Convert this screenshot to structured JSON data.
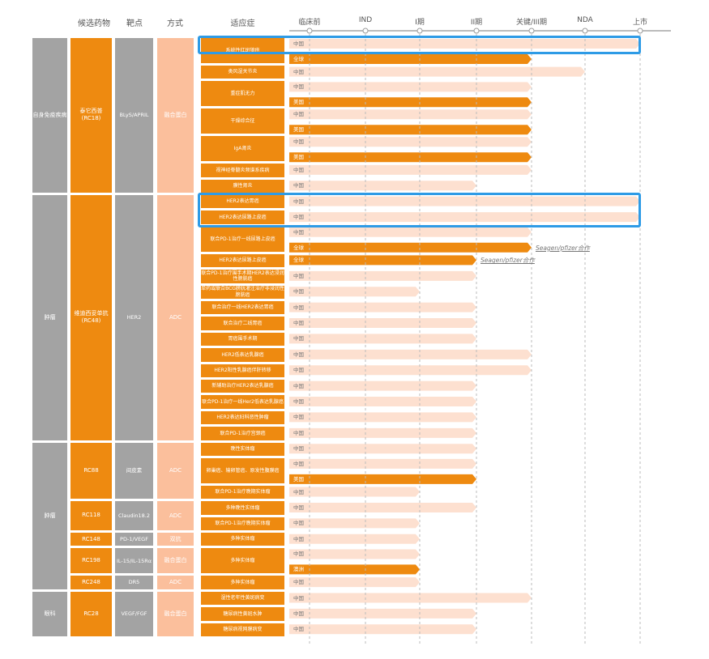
{
  "headers": {
    "drug": "候选药物",
    "target": "靶点",
    "modality": "方式",
    "indication": "适应症"
  },
  "colors": {
    "dark_bar": "#ee8a10",
    "light_bar": "#fde0d0",
    "grey": "#a3a3a3",
    "modality": "#fbbf9c",
    "highlight": "#2e9be6"
  },
  "chart_data": {
    "type": "pipeline",
    "stages": [
      "临床前",
      "IND",
      "I期",
      "II期",
      "关键/III期",
      "NDA",
      "上市"
    ],
    "groups": [
      {
        "category": "自身免疫疾病",
        "drug": "泰它西普\n(RC18)",
        "target": "BLyS/APRIL",
        "modality": "融合蛋白",
        "indications": [
          {
            "name": "系统性红斑狼疮",
            "bars": [
              {
                "region": "中国",
                "stage": 6,
                "style": "light"
              },
              {
                "region": "全球",
                "stage": 4,
                "style": "dark"
              }
            ],
            "highlight": true
          },
          {
            "name": "类风湿关节炎",
            "bars": [
              {
                "region": "中国",
                "stage": 5,
                "style": "light"
              }
            ]
          },
          {
            "name": "重症肌无力",
            "bars": [
              {
                "region": "中国",
                "stage": 4,
                "style": "light"
              },
              {
                "region": "美国",
                "stage": 4,
                "style": "dark"
              }
            ]
          },
          {
            "name": "干燥综合征",
            "bars": [
              {
                "region": "中国",
                "stage": 4,
                "style": "light"
              },
              {
                "region": "美国",
                "stage": 4,
                "style": "dark"
              }
            ]
          },
          {
            "name": "IgA肾炎",
            "bars": [
              {
                "region": "中国",
                "stage": 4,
                "style": "light"
              },
              {
                "region": "美国",
                "stage": 4,
                "style": "dark"
              }
            ]
          },
          {
            "name": "视神经脊髓炎频谱系疾病",
            "bars": [
              {
                "region": "中国",
                "stage": 4,
                "style": "light"
              }
            ]
          },
          {
            "name": "膜性肾炎",
            "bars": [
              {
                "region": "中国",
                "stage": 3,
                "style": "light"
              }
            ]
          }
        ]
      },
      {
        "category": "肿瘤",
        "drug": "维迪西妥单抗\n(RC48)",
        "target": "HER2",
        "modality": "ADC",
        "indications": [
          {
            "name": "HER2表达胃癌",
            "bars": [
              {
                "region": "中国",
                "stage": 6,
                "style": "light"
              }
            ],
            "highlight": true
          },
          {
            "name": "HER2表达尿路上皮癌",
            "bars": [
              {
                "region": "中国",
                "stage": 6,
                "style": "light"
              }
            ],
            "highlight": true
          },
          {
            "name": "联合PD-1治疗一线尿路上皮癌",
            "bars": [
              {
                "region": "中国",
                "stage": 4,
                "style": "light"
              },
              {
                "region": "全球",
                "stage": 4,
                "style": "dark",
                "note": "Seagen/pfizer合作"
              }
            ]
          },
          {
            "name": "HER2表达尿路上皮癌",
            "bars": [
              {
                "region": "全球",
                "stage": 3,
                "style": "dark",
                "note": "Seagen/pfizer合作"
              }
            ]
          },
          {
            "name": "联合PD-1治疗围手术期HER2表达浸润性膀胱癌",
            "bars": [
              {
                "region": "中国",
                "stage": 3,
                "style": "light"
              }
            ]
          },
          {
            "name": "单药或联合BCG膀胱灌注治疗非浸润性膀胱癌",
            "bars": [
              {
                "region": "中国",
                "stage": 2,
                "style": "light"
              }
            ]
          },
          {
            "name": "联合治疗一线HER2表达胃癌",
            "bars": [
              {
                "region": "中国",
                "stage": 3,
                "style": "light"
              }
            ]
          },
          {
            "name": "联合治疗二线胃癌",
            "bars": [
              {
                "region": "中国",
                "stage": 3,
                "style": "light"
              }
            ]
          },
          {
            "name": "胃癌围手术期",
            "bars": [
              {
                "region": "中国",
                "stage": 3,
                "style": "light"
              }
            ]
          },
          {
            "name": "HER2低表达乳腺癌",
            "bars": [
              {
                "region": "中国",
                "stage": 4,
                "style": "light"
              }
            ]
          },
          {
            "name": "HER2阳性乳腺癌伴肝转移",
            "bars": [
              {
                "region": "中国",
                "stage": 4,
                "style": "light"
              }
            ]
          },
          {
            "name": "新辅助治疗HER2表达乳腺癌",
            "bars": [
              {
                "region": "中国",
                "stage": 3,
                "style": "light"
              }
            ]
          },
          {
            "name": "联合PD-1治疗一线Her2低表达乳腺癌",
            "bars": [
              {
                "region": "中国",
                "stage": 3,
                "style": "light"
              }
            ]
          },
          {
            "name": "HER2表达妇科恶性肿瘤",
            "bars": [
              {
                "region": "中国",
                "stage": 3,
                "style": "light"
              }
            ]
          },
          {
            "name": "联合PD-1治疗宫颈癌",
            "bars": [
              {
                "region": "中国",
                "stage": 3,
                "style": "light"
              }
            ]
          }
        ]
      },
      {
        "category": "肿瘤",
        "drug": "RC88",
        "target": "间皮素",
        "modality": "ADC",
        "indications": [
          {
            "name": "晚性实体瘤",
            "bars": [
              {
                "region": "中国",
                "stage": 3,
                "style": "light"
              }
            ]
          },
          {
            "name": "卵巢癌、输卵管癌、原发性腹膜癌",
            "bars": [
              {
                "region": "中国",
                "stage": 3,
                "style": "light"
              },
              {
                "region": "美国",
                "stage": 3,
                "style": "dark"
              }
            ]
          },
          {
            "name": "联合PD-1治疗晚期实体瘤",
            "bars": [
              {
                "region": "中国",
                "stage": 2,
                "style": "light"
              }
            ]
          }
        ]
      },
      {
        "category": "肿瘤",
        "drug": "RC118",
        "target": "Claudin18.2",
        "modality": "ADC",
        "indications": [
          {
            "name": "多种晚性实体瘤",
            "bars": [
              {
                "region": "中国",
                "stage": 3,
                "style": "light"
              }
            ]
          },
          {
            "name": "联合PD-1治疗晚期实体瘤",
            "bars": [
              {
                "region": "中国",
                "stage": 2,
                "style": "light"
              }
            ]
          }
        ]
      },
      {
        "category": "肿瘤",
        "drug": "RC148",
        "target": "PD-1/VEGF",
        "modality": "双抗",
        "indications": [
          {
            "name": "多种实体瘤",
            "bars": [
              {
                "region": "中国",
                "stage": 2,
                "style": "light"
              }
            ]
          }
        ]
      },
      {
        "category": "肿瘤",
        "drug": "RC198",
        "target": "IL-15/IL-15Rα",
        "modality": "融合蛋白",
        "indications": [
          {
            "name": "多种实体瘤",
            "bars": [
              {
                "region": "中国",
                "stage": 2,
                "style": "light"
              },
              {
                "region": "澳洲",
                "stage": 2,
                "style": "dark"
              }
            ]
          }
        ]
      },
      {
        "category": "肿瘤",
        "drug": "RC248",
        "target": "DR5",
        "modality": "ADC",
        "indications": [
          {
            "name": "多种实体瘤",
            "bars": [
              {
                "region": "中国",
                "stage": 2,
                "style": "light"
              }
            ]
          }
        ]
      },
      {
        "category": "眼科",
        "drug": "RC28",
        "target": "VEGF/FGF",
        "modality": "融合蛋白",
        "indications": [
          {
            "name": "湿性老年性黄斑病变",
            "bars": [
              {
                "region": "中国",
                "stage": 4,
                "style": "light"
              }
            ]
          },
          {
            "name": "糖尿病性黄斑水肿",
            "bars": [
              {
                "region": "中国",
                "stage": 3,
                "style": "light"
              }
            ]
          },
          {
            "name": "糖尿病视网膜病变",
            "bars": [
              {
                "region": "中国",
                "stage": 3,
                "style": "light"
              }
            ]
          }
        ]
      }
    ]
  }
}
